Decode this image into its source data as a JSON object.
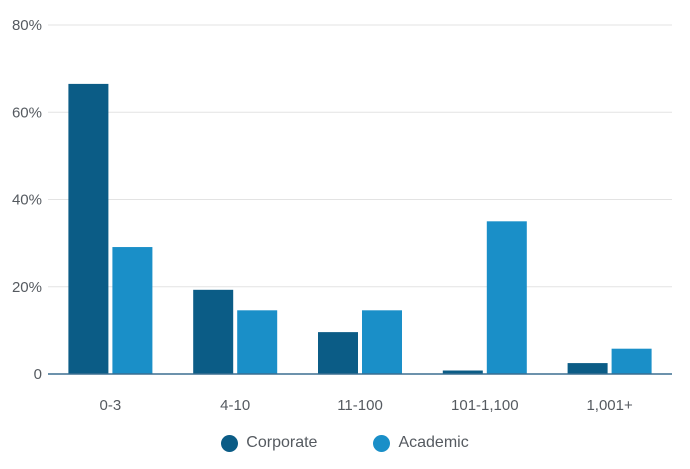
{
  "chart_data": {
    "type": "bar",
    "categories": [
      "0-3",
      "4-10",
      "11-100",
      "101-1,100",
      "1,001+"
    ],
    "series": [
      {
        "name": "Corporate",
        "color": "#0b5c86",
        "values": [
          66.5,
          19.3,
          9.6,
          0.8,
          2.5
        ]
      },
      {
        "name": "Academic",
        "color": "#1a8fc8",
        "values": [
          29.1,
          14.6,
          14.6,
          35.0,
          5.8
        ]
      }
    ],
    "ylim": [
      0,
      80
    ],
    "yticks": [
      0,
      20,
      40,
      60,
      80
    ],
    "ytick_labels": [
      "0",
      "20%",
      "40%",
      "60%",
      "80%"
    ],
    "title": "",
    "xlabel": "",
    "ylabel": "",
    "grid": true,
    "legend_position": "bottom-center"
  }
}
